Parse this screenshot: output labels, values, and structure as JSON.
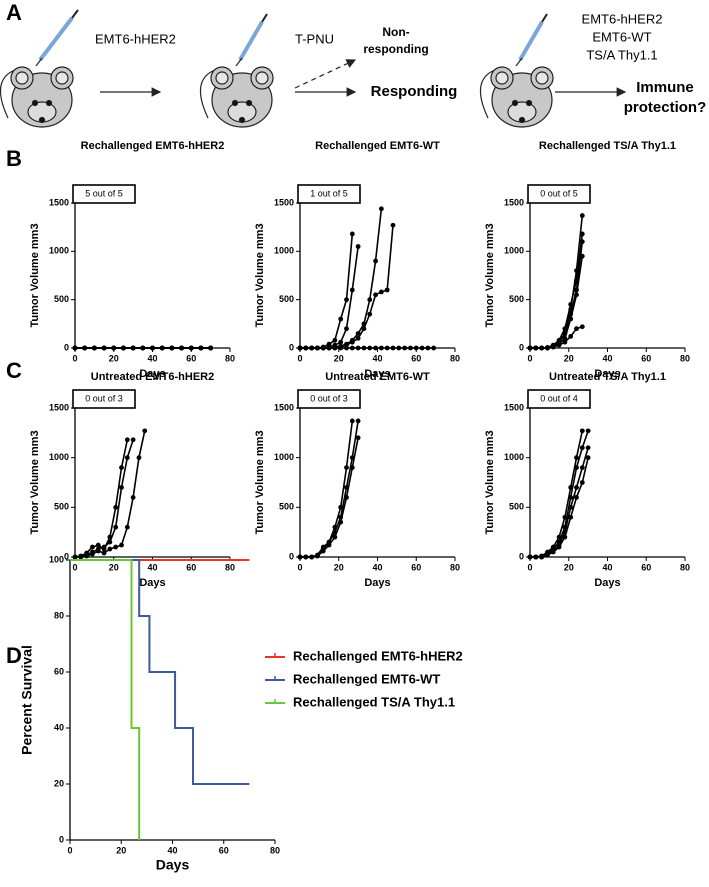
{
  "panel_labels": [
    "A",
    "B",
    "C",
    "D"
  ],
  "diagram": {
    "injection_1": "EMT6-hHER2",
    "treatment": "T-PNU",
    "non_responding": [
      "Non-",
      "responding"
    ],
    "responding": "Responding",
    "rechallenge": [
      "EMT6-hHER2",
      "EMT6-WT",
      "TS/A Thy1.1"
    ],
    "outcome": [
      "Immune",
      "protection?"
    ]
  },
  "chart_data": [
    {
      "type": "line",
      "title": "Rechallenged EMT6-hHER2",
      "annotation": "5 out of 5",
      "x_label": "Days",
      "y_label": "Tumor Volume mm3",
      "x": [
        0,
        5,
        10,
        15,
        20,
        25,
        30,
        35,
        40,
        45,
        50,
        55,
        60,
        65,
        70
      ],
      "series": [
        {
          "color": "#000000",
          "values": [
            0,
            0,
            0,
            0,
            0,
            0,
            0,
            0,
            0,
            0,
            0,
            0,
            0,
            0,
            0
          ]
        },
        {
          "color": "#000000",
          "values": [
            0,
            0,
            0,
            0,
            0,
            0,
            0,
            0,
            0,
            0,
            0,
            0,
            0,
            0,
            0
          ]
        },
        {
          "color": "#000000",
          "values": [
            0,
            0,
            0,
            0,
            0,
            0,
            0,
            0,
            0,
            0,
            0,
            0,
            0,
            0,
            0
          ]
        },
        {
          "color": "#000000",
          "values": [
            0,
            0,
            0,
            0,
            0,
            0,
            0,
            0,
            0,
            0,
            0,
            0,
            0,
            0,
            0
          ]
        },
        {
          "color": "#000000",
          "values": [
            0,
            0,
            0,
            0,
            0,
            0,
            0,
            0,
            0,
            0,
            0,
            0,
            0,
            0,
            0
          ]
        }
      ],
      "xlim": [
        0,
        80
      ],
      "xticks": [
        0,
        20,
        40,
        60,
        80
      ],
      "ylim": [
        0,
        1500
      ],
      "yticks": [
        0,
        500,
        1000,
        1500
      ],
      "markers": true
    },
    {
      "type": "line",
      "title": "Rechallenged EMT6-WT",
      "annotation": "1 out of 5",
      "x_label": "Days",
      "y_label": "Tumor Volume mm3",
      "x": [
        0,
        3,
        6,
        9,
        12,
        15,
        18,
        21,
        24,
        27,
        30,
        33,
        36,
        39,
        42,
        45,
        48,
        51,
        54,
        57,
        60,
        63,
        66,
        69
      ],
      "series": [
        {
          "color": "#000000",
          "values": [
            0,
            0,
            0,
            0,
            10,
            40,
            80,
            300,
            500,
            1180,
            null,
            null,
            null,
            null,
            null,
            null,
            null,
            null,
            null,
            null,
            null,
            null,
            null,
            null
          ]
        },
        {
          "color": "#000000",
          "values": [
            0,
            0,
            0,
            0,
            0,
            10,
            30,
            60,
            200,
            600,
            1050,
            null,
            null,
            null,
            null,
            null,
            null,
            null,
            null,
            null,
            null,
            null,
            null,
            null
          ]
        },
        {
          "color": "#000000",
          "values": [
            0,
            0,
            0,
            0,
            0,
            0,
            10,
            20,
            40,
            80,
            150,
            250,
            500,
            900,
            1440,
            null,
            null,
            null,
            null,
            null,
            null,
            null,
            null,
            null
          ]
        },
        {
          "color": "#000000",
          "values": [
            0,
            0,
            0,
            0,
            0,
            0,
            0,
            10,
            30,
            60,
            100,
            200,
            350,
            550,
            580,
            600,
            1270,
            null,
            null,
            null,
            null,
            null,
            null,
            null
          ]
        },
        {
          "color": "#000000",
          "values": [
            0,
            0,
            0,
            0,
            0,
            0,
            0,
            0,
            0,
            0,
            0,
            0,
            0,
            0,
            0,
            0,
            0,
            0,
            0,
            0,
            0,
            0,
            0,
            0
          ]
        }
      ],
      "xlim": [
        0,
        80
      ],
      "xticks": [
        0,
        20,
        40,
        60,
        80
      ],
      "ylim": [
        0,
        1500
      ],
      "yticks": [
        0,
        500,
        1000,
        1500
      ],
      "markers": true
    },
    {
      "type": "line",
      "title": "Rechallenged TS/A Thy1.1",
      "annotation": "0 out of 5",
      "x_label": "Days",
      "y_label": "Tumor Volume mm3",
      "x": [
        0,
        3,
        6,
        9,
        12,
        15,
        18,
        21,
        24,
        27
      ],
      "series": [
        {
          "color": "#000000",
          "values": [
            0,
            0,
            0,
            5,
            20,
            60,
            150,
            400,
            800,
            1370
          ]
        },
        {
          "color": "#000000",
          "values": [
            0,
            0,
            0,
            5,
            30,
            80,
            200,
            450,
            700,
            1180
          ]
        },
        {
          "color": "#000000",
          "values": [
            0,
            0,
            0,
            0,
            20,
            50,
            150,
            350,
            600,
            1100
          ]
        },
        {
          "color": "#000000",
          "values": [
            0,
            0,
            0,
            0,
            10,
            40,
            100,
            300,
            550,
            950
          ]
        },
        {
          "color": "#000000",
          "values": [
            0,
            0,
            0,
            0,
            10,
            30,
            60,
            120,
            200,
            220
          ]
        }
      ],
      "xlim": [
        0,
        80
      ],
      "xticks": [
        0,
        20,
        40,
        60,
        80
      ],
      "ylim": [
        0,
        1500
      ],
      "yticks": [
        0,
        500,
        1000,
        1500
      ],
      "markers": true
    },
    {
      "type": "line",
      "title": "Untreated EMT6-hHER2",
      "annotation": "0 out of 3",
      "x_label": "Days",
      "y_label": "Tumor Volume mm3",
      "x": [
        0,
        3,
        6,
        9,
        12,
        15,
        18,
        21,
        24,
        27,
        30,
        33,
        36
      ],
      "series": [
        {
          "color": "#000000",
          "values": [
            0,
            10,
            40,
            100,
            120,
            80,
            200,
            500,
            900,
            1180,
            null,
            null,
            null
          ]
        },
        {
          "color": "#000000",
          "values": [
            0,
            5,
            20,
            50,
            80,
            100,
            150,
            300,
            700,
            1000,
            1180,
            null,
            null
          ]
        },
        {
          "color": "#000000",
          "values": [
            0,
            0,
            10,
            30,
            60,
            40,
            80,
            100,
            120,
            300,
            600,
            1000,
            1270
          ]
        }
      ],
      "xlim": [
        0,
        80
      ],
      "xticks": [
        0,
        20,
        40,
        60,
        80
      ],
      "ylim": [
        0,
        1500
      ],
      "yticks": [
        0,
        500,
        1000,
        1500
      ],
      "markers": true
    },
    {
      "type": "line",
      "title": "Untreated EMT6-WT",
      "annotation": "0 out of 3",
      "x_label": "Days",
      "y_label": "Tumor Volume mm3",
      "x": [
        0,
        3,
        6,
        9,
        12,
        15,
        18,
        21,
        24,
        27,
        30
      ],
      "series": [
        {
          "color": "#000000",
          "values": [
            0,
            0,
            0,
            20,
            100,
            150,
            300,
            500,
            900,
            1370,
            null
          ]
        },
        {
          "color": "#000000",
          "values": [
            0,
            0,
            0,
            10,
            80,
            150,
            250,
            400,
            700,
            1000,
            1370
          ]
        },
        {
          "color": "#000000",
          "values": [
            0,
            0,
            0,
            10,
            60,
            120,
            200,
            350,
            600,
            900,
            1200
          ]
        }
      ],
      "xlim": [
        0,
        80
      ],
      "xticks": [
        0,
        20,
        40,
        60,
        80
      ],
      "ylim": [
        0,
        1500
      ],
      "yticks": [
        0,
        500,
        1000,
        1500
      ],
      "markers": true
    },
    {
      "type": "line",
      "title": "Untreated TS/A Thy1.1",
      "annotation": "0 out of 4",
      "x_label": "Days",
      "y_label": "Tumor Volume mm3",
      "x": [
        0,
        3,
        6,
        9,
        12,
        15,
        18,
        21,
        24,
        27,
        30
      ],
      "series": [
        {
          "color": "#000000",
          "values": [
            0,
            0,
            10,
            50,
            100,
            200,
            400,
            700,
            1000,
            1270,
            null
          ]
        },
        {
          "color": "#000000",
          "values": [
            0,
            0,
            5,
            40,
            80,
            150,
            300,
            600,
            900,
            1100,
            1270
          ]
        },
        {
          "color": "#000000",
          "values": [
            0,
            0,
            0,
            30,
            60,
            120,
            250,
            500,
            700,
            900,
            1100
          ]
        },
        {
          "color": "#000000",
          "values": [
            0,
            0,
            0,
            20,
            50,
            100,
            200,
            400,
            600,
            750,
            1000
          ]
        }
      ],
      "xlim": [
        0,
        80
      ],
      "xticks": [
        0,
        20,
        40,
        60,
        80
      ],
      "ylim": [
        0,
        1500
      ],
      "yticks": [
        0,
        500,
        1000,
        1500
      ],
      "markers": true
    },
    {
      "type": "step",
      "x_label": "Days",
      "y_label": "Percent Survival",
      "series": [
        {
          "name": "Rechallenged EMT6-hHER2",
          "color": "#e8342a",
          "x": [
            0,
            70
          ],
          "values": [
            100,
            100
          ]
        },
        {
          "name": "Rechallenged EMT6-WT",
          "color": "#3d5a99",
          "x": [
            0,
            27,
            31,
            41,
            48,
            70
          ],
          "values": [
            100,
            80,
            60,
            40,
            20,
            20
          ]
        },
        {
          "name": "Rechallenged TS/A Thy1.1",
          "color": "#6cc43a",
          "x": [
            0,
            24,
            27
          ],
          "values": [
            100,
            40,
            0
          ]
        }
      ],
      "xlim": [
        0,
        80
      ],
      "xticks": [
        0,
        20,
        40,
        60,
        80
      ],
      "ylim": [
        0,
        100
      ],
      "yticks": [
        0,
        20,
        40,
        60,
        80,
        100
      ],
      "legend": "right"
    }
  ]
}
